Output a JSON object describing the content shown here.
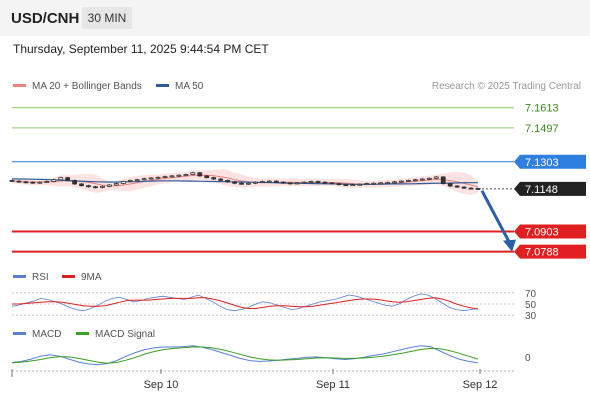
{
  "header": {
    "symbol": "USD/CNH",
    "timeframe": "30 MIN",
    "datetime": "Thursday, September 11, 2025 9:44:54 PM CET"
  },
  "price_panel": {
    "legend": [
      {
        "label": "MA 20 + Bollinger Bands",
        "color": "#f08080"
      },
      {
        "label": "MA 50",
        "color": "#2f5b9b"
      }
    ],
    "credit": "Research © 2025 Trading Central"
  },
  "rsi_panel": {
    "legend": [
      {
        "label": "RSI",
        "color": "#5b7fd6"
      },
      {
        "label": "9MA",
        "color": "#e02020"
      }
    ]
  },
  "macd_panel": {
    "legend": [
      {
        "label": "MACD",
        "color": "#5b7fd6"
      },
      {
        "label": "MACD Signal",
        "color": "#3aa020"
      }
    ]
  },
  "colors": {
    "resistance": "#8cc870",
    "resistance_text": "#3a8a1a",
    "pivot": "#2f7fe0",
    "support": "#e02020",
    "current": "#222222",
    "candle": "#333333",
    "bollinger_fill": "#fde2e2",
    "arrow": "#2a5ea8"
  },
  "chart_data": [
    {
      "type": "candlestick",
      "panel": "price",
      "x_ticks": [
        "Sep 10",
        "Sep 11",
        "Sep 12"
      ],
      "ylim": [
        7.074,
        7.168
      ],
      "levels": [
        {
          "kind": "resistance",
          "label": "7.1613",
          "value": 7.1613
        },
        {
          "kind": "resistance",
          "label": "7.1497",
          "value": 7.1497
        },
        {
          "kind": "pivot",
          "label": "7.1303",
          "value": 7.1303
        },
        {
          "kind": "current",
          "label": "7.1148",
          "value": 7.1148
        },
        {
          "kind": "support",
          "label": "7.0903",
          "value": 7.0903
        },
        {
          "kind": "support",
          "label": "7.0788",
          "value": 7.0788
        }
      ],
      "close": [
        7.1192,
        7.1188,
        7.1186,
        7.1182,
        7.1186,
        7.119,
        7.12,
        7.1212,
        7.1196,
        7.1176,
        7.1166,
        7.116,
        7.1156,
        7.1162,
        7.117,
        7.1178,
        7.119,
        7.1196,
        7.12,
        7.1206,
        7.121,
        7.1214,
        7.1218,
        7.1222,
        7.1226,
        7.123,
        7.124,
        7.1222,
        7.1212,
        7.1204,
        7.1196,
        7.1188,
        7.118,
        7.1176,
        7.118,
        7.1186,
        7.119,
        7.1192,
        7.1186,
        7.1182,
        7.1178,
        7.1182,
        7.1186,
        7.119,
        7.1186,
        7.1182,
        7.1178,
        7.1172,
        7.117,
        7.1172,
        7.1174,
        7.1178,
        7.118,
        7.1182,
        7.1184,
        7.1188,
        7.1192,
        7.1196,
        7.12,
        7.1204,
        7.1208,
        7.1216,
        7.1178,
        7.1164,
        7.1158,
        7.1152,
        7.115,
        7.1148
      ],
      "ma50": [
        7.1205,
        7.1204,
        7.1203,
        7.1202,
        7.12,
        7.1198,
        7.1195,
        7.1192,
        7.119,
        7.1188,
        7.1187,
        7.1187,
        7.1188,
        7.1189,
        7.1191,
        7.1193,
        7.1194,
        7.1194,
        7.1193,
        7.1192,
        7.1191,
        7.119,
        7.1189,
        7.1188,
        7.1187,
        7.1186,
        7.1185,
        7.1184,
        7.1182,
        7.1181,
        7.118,
        7.1179,
        7.1178,
        7.1177,
        7.1176,
        7.1175,
        7.1174,
        7.1174,
        7.1174,
        7.1175,
        7.1176,
        7.1176,
        7.1177,
        7.1178,
        7.1179,
        7.118,
        7.1181,
        7.1182,
        7.1183,
        7.1183
      ],
      "forecast": {
        "from": 7.1148,
        "to": 7.0788
      }
    },
    {
      "type": "line",
      "panel": "rsi",
      "ylim": [
        25,
        75
      ],
      "y_ticks": [
        "70",
        "50",
        "30"
      ],
      "series": [
        {
          "name": "RSI",
          "values": [
            46,
            48,
            52,
            55,
            60,
            58,
            54,
            50,
            44,
            40,
            38,
            42,
            48,
            55,
            60,
            62,
            58,
            54,
            56,
            60,
            62,
            64,
            62,
            60,
            58,
            62,
            66,
            60,
            54,
            46,
            40,
            38,
            40,
            44,
            50,
            54,
            52,
            48,
            44,
            40,
            42,
            46,
            50,
            54,
            56,
            58,
            62,
            66,
            64,
            60,
            56,
            52,
            48,
            46,
            50,
            58,
            64,
            68,
            66,
            60,
            52,
            44,
            40,
            38,
            40,
            42
          ]
        },
        {
          "name": "9MA",
          "values": [
            50,
            50,
            51,
            52,
            53,
            54,
            54,
            53,
            51,
            49,
            47,
            46,
            46,
            47,
            50,
            53,
            56,
            57,
            57,
            57,
            58,
            59,
            60,
            60,
            60,
            60,
            61,
            61,
            59,
            56,
            52,
            48,
            44,
            42,
            42,
            44,
            46,
            47,
            47,
            46,
            45,
            45,
            46,
            48,
            50,
            52,
            54,
            56,
            58,
            59,
            59,
            58,
            56,
            54,
            53,
            54,
            56,
            58,
            60,
            61,
            59,
            55,
            50,
            46,
            43,
            41
          ]
        }
      ]
    },
    {
      "type": "line",
      "panel": "macd",
      "ylim": [
        -0.003,
        0.0035
      ],
      "y_ticks": [
        "0"
      ],
      "series": [
        {
          "name": "MACD",
          "values": [
            -0.0015,
            -0.0012,
            -0.0006,
            0.0002,
            0.0006,
            0.0002,
            -0.0006,
            -0.0014,
            -0.0019,
            -0.0021,
            -0.0018,
            -0.001,
            0.0002,
            0.0012,
            0.002,
            0.0025,
            0.0027,
            0.0027,
            0.0028,
            0.003,
            0.0026,
            0.002,
            0.0012,
            0.0004,
            -0.0004,
            -0.001,
            -0.0012,
            -0.0011,
            -0.0009,
            -0.0006,
            -0.0004,
            -0.0001,
            0.0,
            -0.0002,
            -0.0005,
            -0.0007,
            -0.0005,
            -0.0001,
            0.0004,
            0.0008,
            0.0014,
            0.002,
            0.0026,
            0.003,
            0.0028,
            0.0016,
            0.0004,
            -0.0006,
            -0.0012,
            -0.0016
          ]
        },
        {
          "name": "MACD Signal",
          "values": [
            -0.0016,
            -0.0014,
            -0.0011,
            -0.0007,
            -0.0002,
            0.0001,
            0.0,
            -0.0004,
            -0.0009,
            -0.0014,
            -0.0017,
            -0.0015,
            -0.0009,
            -0.0001,
            0.0008,
            0.0015,
            0.002,
            0.0023,
            0.0025,
            0.0027,
            0.0027,
            0.0025,
            0.002,
            0.0014,
            0.0007,
            0.0,
            -0.0005,
            -0.0008,
            -0.0009,
            -0.0008,
            -0.0007,
            -0.0005,
            -0.0003,
            -0.0002,
            -0.0003,
            -0.0004,
            -0.0004,
            -0.0003,
            -0.0001,
            0.0002,
            0.0006,
            0.001,
            0.0015,
            0.002,
            0.0023,
            0.0022,
            0.0017,
            0.001,
            0.0002,
            -0.0006
          ]
        }
      ]
    }
  ]
}
